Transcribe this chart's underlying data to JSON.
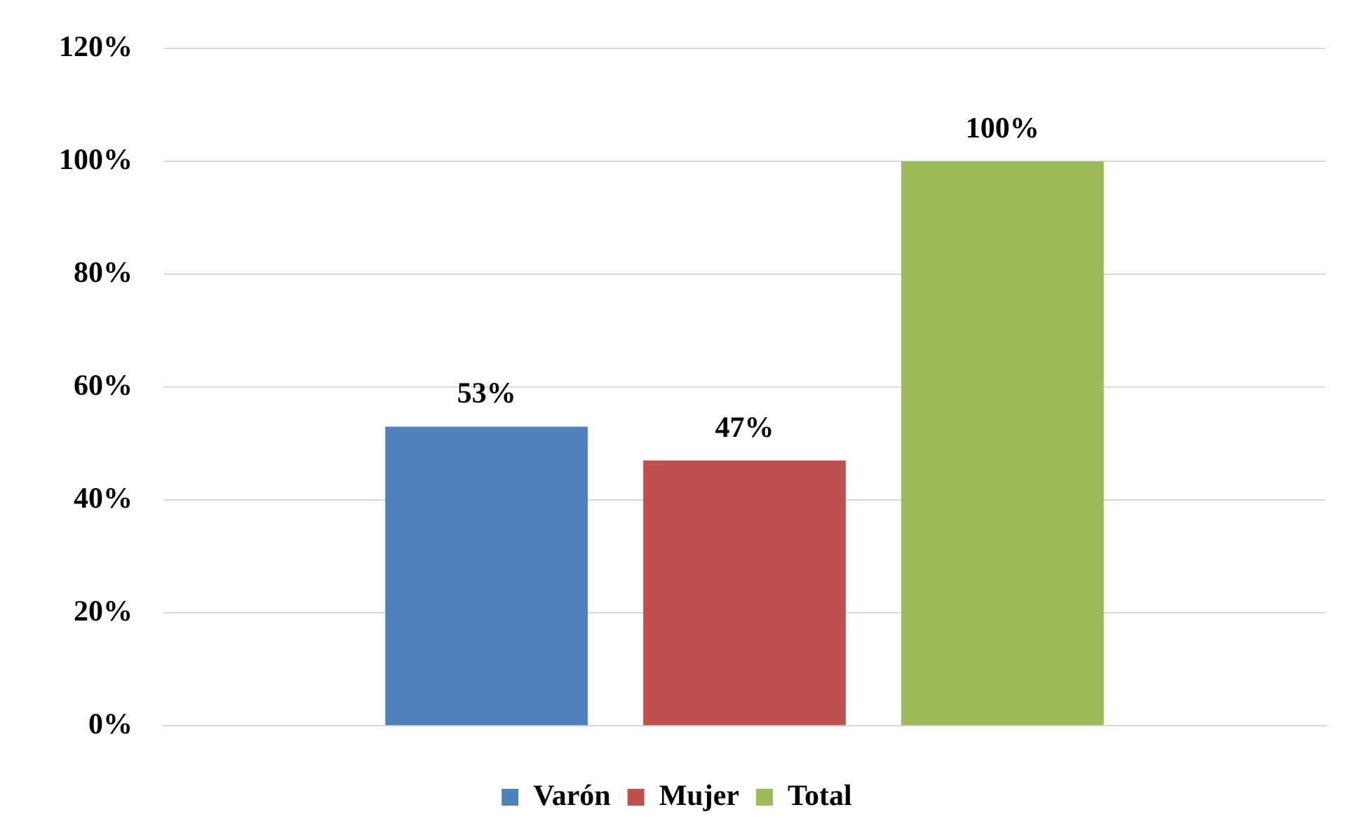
{
  "chart_data": {
    "type": "bar",
    "categories": [
      null
    ],
    "series": [
      {
        "name": "Varón",
        "color": "#4f81bd",
        "values": [
          53
        ],
        "value_labels": [
          "53%"
        ]
      },
      {
        "name": "Mujer",
        "color": "#c0504d",
        "values": [
          47
        ],
        "value_labels": [
          "47%"
        ]
      },
      {
        "name": "Total",
        "color": "#9bbb59",
        "values": [
          100
        ],
        "value_labels": [
          "100%"
        ]
      }
    ],
    "ylim": [
      0,
      120
    ],
    "yticks": [
      {
        "value": 0,
        "label": "0%"
      },
      {
        "value": 20,
        "label": "20%"
      },
      {
        "value": 40,
        "label": "40%"
      },
      {
        "value": 60,
        "label": "60%"
      },
      {
        "value": 80,
        "label": "80%"
      },
      {
        "value": 100,
        "label": "100%"
      },
      {
        "value": 120,
        "label": "120%"
      }
    ],
    "grid": "y",
    "legend": "bottom"
  }
}
